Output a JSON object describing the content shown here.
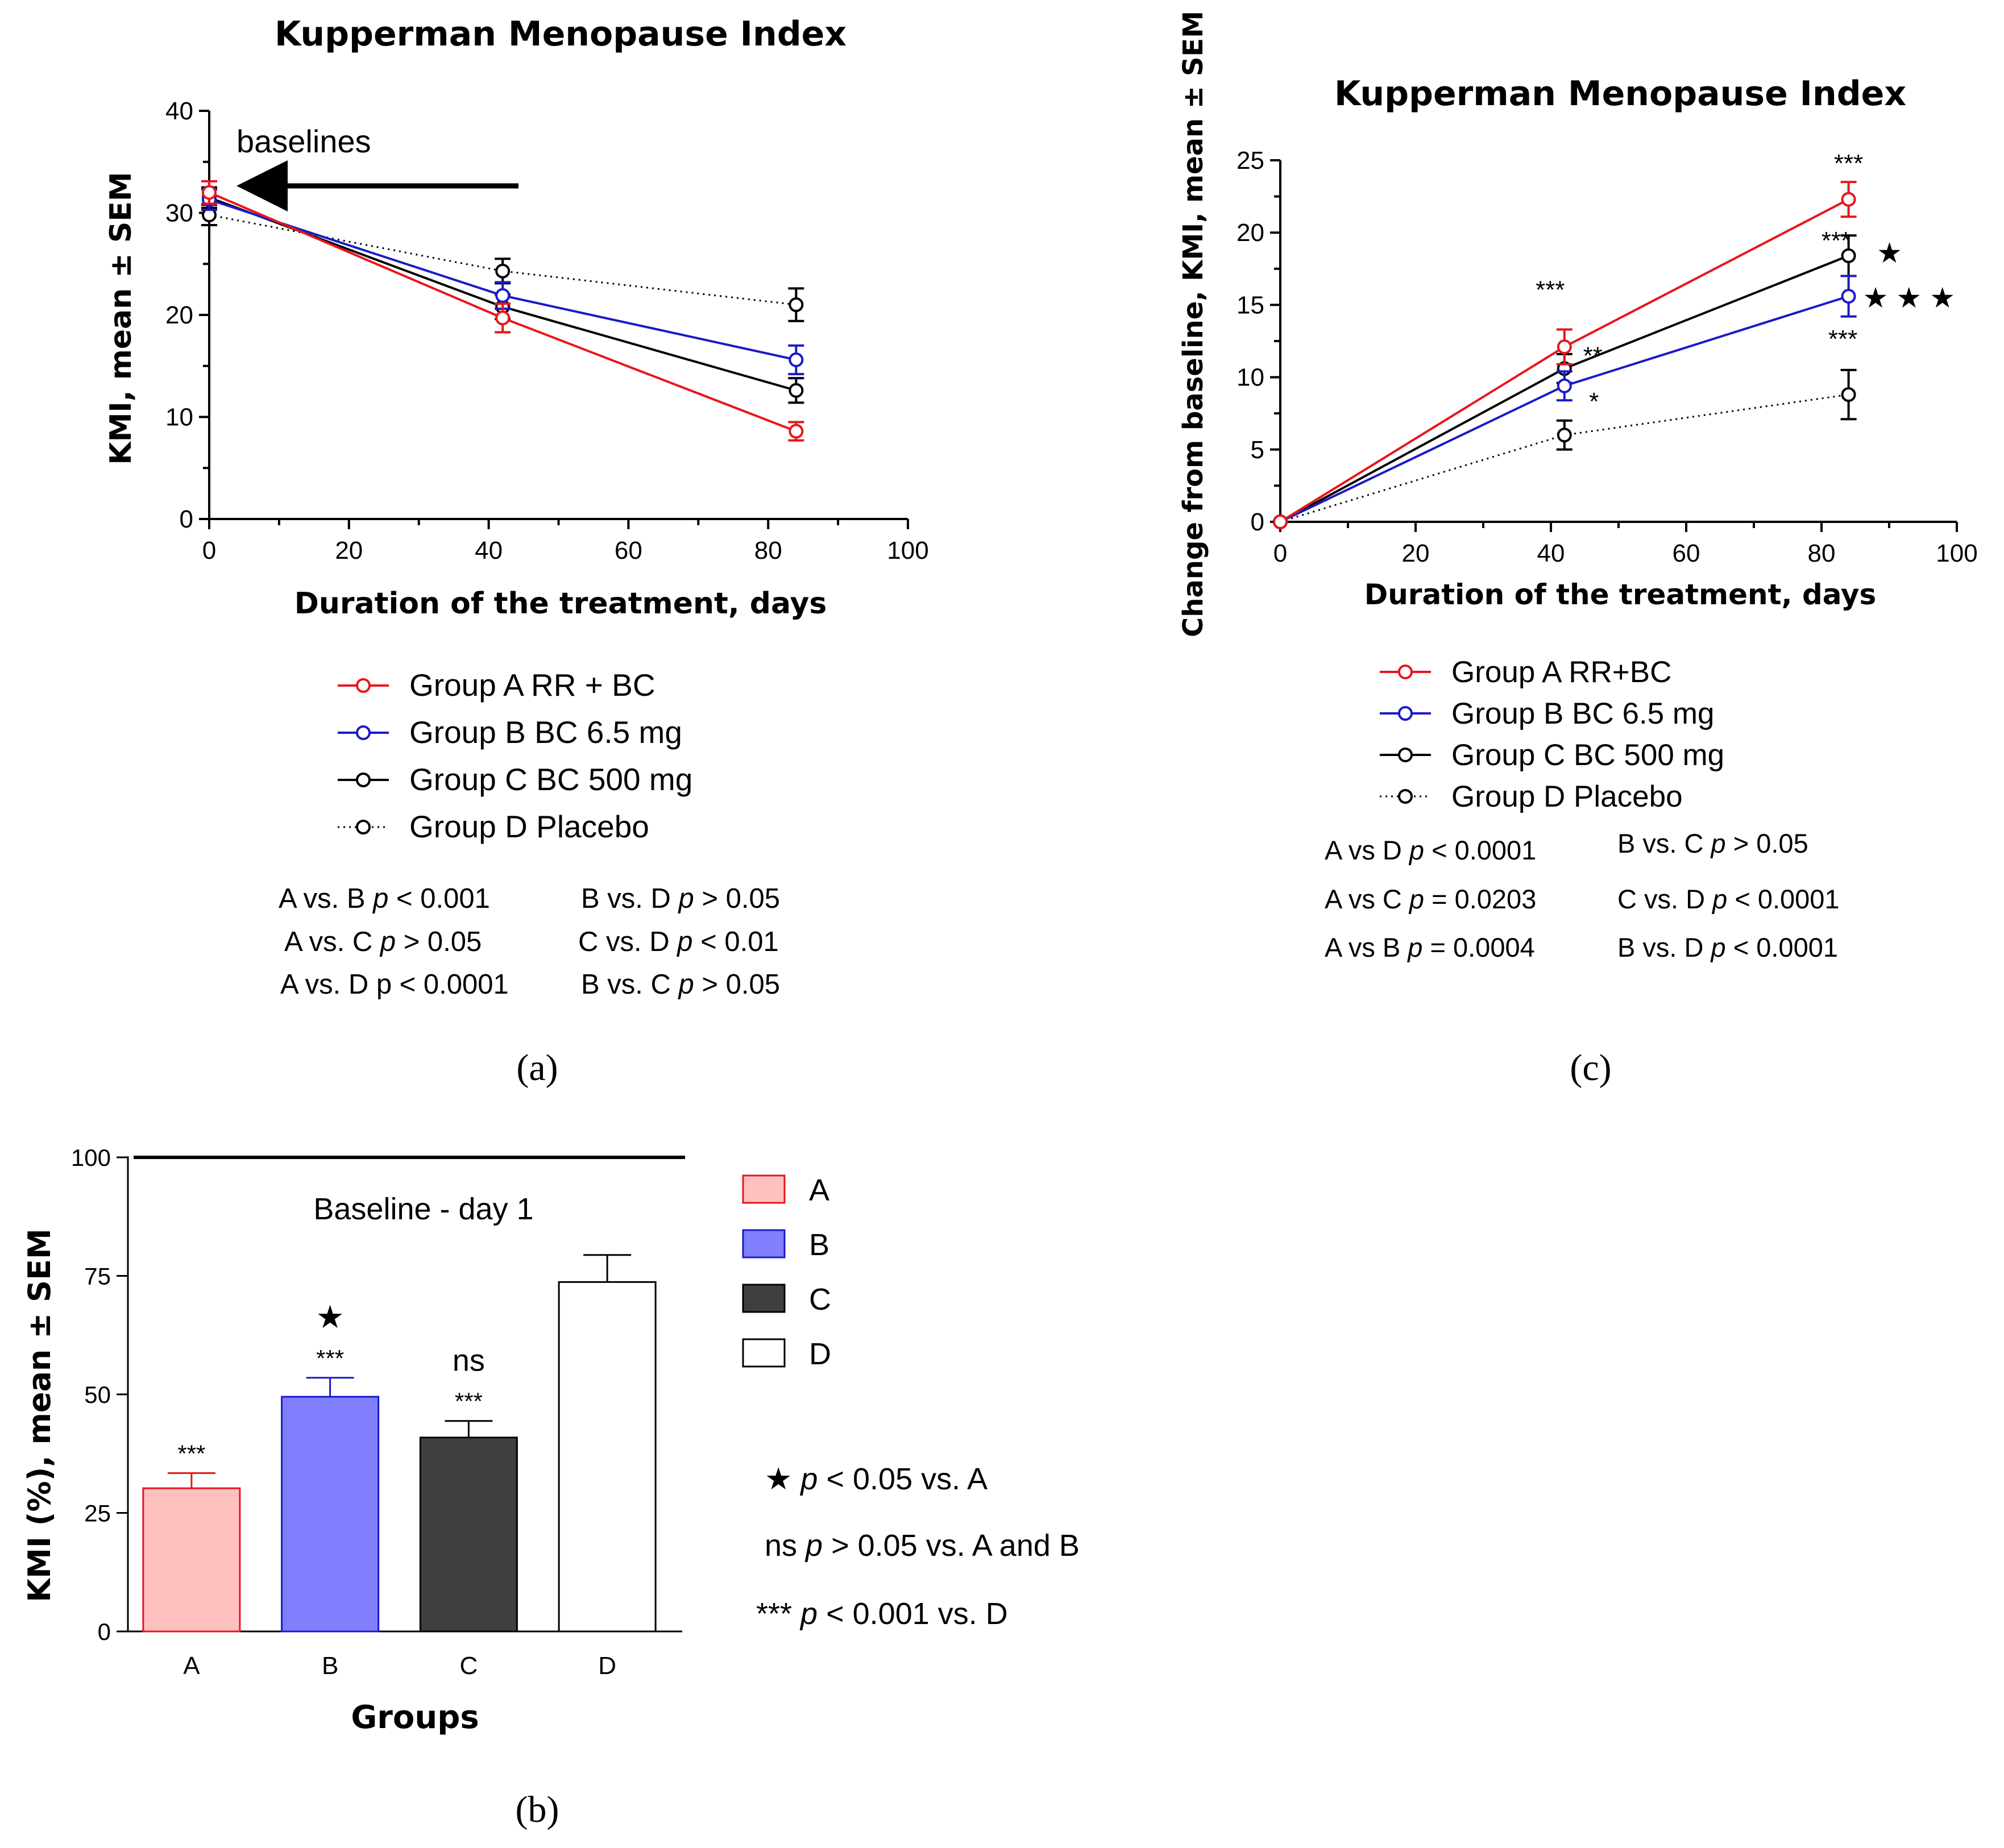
{
  "chart_data": [
    {
      "panel": "a",
      "type": "line",
      "title": "Kupperman Menopause Index",
      "xlabel": "Duration of the treatment, days",
      "ylabel": "KMI, mean ± SEM",
      "xlim": [
        0,
        100
      ],
      "ylim": [
        0,
        40
      ],
      "xticks": [
        "0",
        "20",
        "40",
        "60",
        "80",
        "100"
      ],
      "yticks": [
        "0",
        "10",
        "20",
        "30",
        "40"
      ],
      "x": [
        0,
        42,
        84
      ],
      "series": [
        {
          "name": "Group A RR + BC",
          "color": "#e8151b",
          "style": "solid",
          "values": [
            32.0,
            19.7,
            8.6
          ],
          "err": [
            1.1,
            1.4,
            0.9
          ]
        },
        {
          "name": "Group B BC 6.5 mg",
          "color": "#1a1ac8",
          "style": "solid",
          "values": [
            31.3,
            21.9,
            15.6
          ],
          "err": [
            1.0,
            1.3,
            1.4
          ]
        },
        {
          "name": "Group C BC 500 mg",
          "color": "#000000",
          "style": "solid",
          "values": [
            31.5,
            20.8,
            12.6
          ],
          "err": [
            1.0,
            1.2,
            1.2
          ]
        },
        {
          "name": "Group D Placebo",
          "color": "#000000",
          "style": "dotted",
          "values": [
            29.8,
            24.3,
            21.0
          ],
          "err": [
            1.0,
            1.2,
            1.6
          ]
        }
      ],
      "annotation": "baselines",
      "stats": [
        [
          "A vs. B",
          "p",
          "< 0.001"
        ],
        [
          "A vs. C",
          "p",
          "> 0.05"
        ],
        [
          "A vs. D p < 0.0001",
          "",
          ""
        ],
        [
          "B vs. D",
          "p",
          "> 0.05"
        ],
        [
          "C vs. D",
          "p",
          "< 0.01"
        ],
        [
          "B vs. C",
          "p",
          "> 0.05"
        ]
      ],
      "caption": "(a)"
    },
    {
      "panel": "b",
      "type": "bar",
      "xlabel": "Groups",
      "ylabel": "KMI (%), mean ± SEM",
      "ylim": [
        0,
        100
      ],
      "yticks": [
        "0",
        "25",
        "50",
        "75",
        "100"
      ],
      "categories": [
        "A",
        "B",
        "C",
        "D"
      ],
      "values": [
        30.2,
        49.5,
        40.9,
        73.7
      ],
      "err": [
        3.2,
        4.0,
        3.5,
        5.7
      ],
      "colors": [
        "#ffc0c0",
        "#8080ff",
        "#3f3f3f",
        "#ffffff"
      ],
      "edgecolors": [
        "#e8151b",
        "#1a1ac8",
        "#000000",
        "#000000"
      ],
      "bar_marks": [
        "***",
        "***",
        "***",
        ""
      ],
      "bar_marks2": [
        "",
        "★",
        "ns",
        ""
      ],
      "reference_line": {
        "value": 100,
        "label": "Baseline - day 1"
      },
      "legend": [
        "A",
        "B",
        "C",
        "D"
      ],
      "notes": [
        [
          "★",
          "p",
          "< 0.05 vs. A"
        ],
        [
          "ns",
          "p",
          "> 0.05 vs. A and B"
        ],
        [
          "***",
          "p",
          "< 0.001 vs. D"
        ]
      ],
      "caption": "(b)"
    },
    {
      "panel": "c",
      "type": "line",
      "title": "Kupperman Menopause Index",
      "xlabel": "Duration of the treatment, days",
      "ylabel": "Change from baseline, KMI, mean ± SEM",
      "xlim": [
        0,
        100
      ],
      "ylim": [
        0,
        25
      ],
      "xticks": [
        "0",
        "20",
        "40",
        "60",
        "80",
        "100"
      ],
      "yticks": [
        "0",
        "5",
        "10",
        "15",
        "20",
        "25"
      ],
      "x": [
        0,
        42,
        84
      ],
      "series": [
        {
          "name": "Group A RR+BC",
          "color": "#e8151b",
          "style": "solid",
          "values": [
            0,
            12.1,
            22.3
          ],
          "err": [
            0,
            1.2,
            1.2
          ]
        },
        {
          "name": "Group B BC 6.5 mg",
          "color": "#1a1ac8",
          "style": "solid",
          "values": [
            0,
            9.4,
            15.6
          ],
          "err": [
            0,
            1.0,
            1.4
          ]
        },
        {
          "name": "Group C BC 500 mg",
          "color": "#000000",
          "style": "solid",
          "values": [
            0,
            10.6,
            18.4
          ],
          "err": [
            0,
            1.0,
            1.4
          ]
        },
        {
          "name": "Group D Placebo",
          "color": "#000000",
          "style": "dotted",
          "values": [
            0,
            6.0,
            8.8
          ],
          "err": [
            0,
            1.0,
            1.7
          ]
        }
      ],
      "annotations": [
        "***",
        "**",
        "*",
        "***",
        "***",
        "★",
        "***",
        "★★★"
      ],
      "stats": [
        [
          "A vs D",
          "p",
          "< 0.0001"
        ],
        [
          "A vs C",
          "p",
          "= 0.0203"
        ],
        [
          "A vs B",
          "p",
          "= 0.0004"
        ],
        [
          "B vs. C",
          "p",
          "> 0.05"
        ],
        [
          "C vs. D",
          "p",
          "< 0.0001"
        ],
        [
          "B vs. D",
          "p",
          "< 0.0001"
        ]
      ],
      "caption": "(c)"
    }
  ]
}
